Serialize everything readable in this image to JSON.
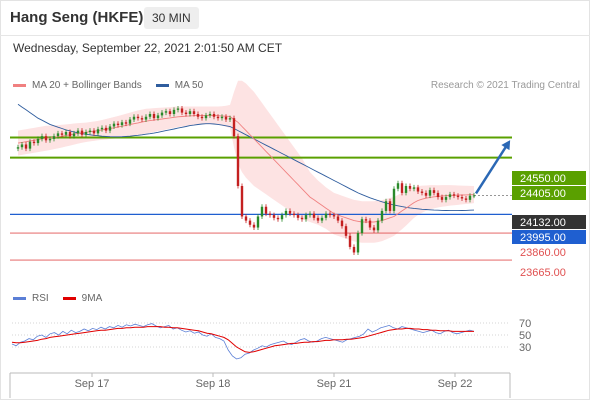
{
  "header": {
    "title": "Hang Seng (HKFE)",
    "interval": "30 MIN",
    "datetime": "Wednesday, September 22, 2021 2:01:50 AM CET"
  },
  "legend": {
    "main": [
      {
        "label": "MA 20 + Bollinger Bands",
        "color": "#f08080"
      },
      {
        "label": "MA 50",
        "color": "#2f5d9e"
      }
    ],
    "rsi": [
      {
        "label": "RSI",
        "color": "#5b7fd6"
      },
      {
        "label": "9MA",
        "color": "#e00000"
      }
    ]
  },
  "credit": "Research © 2021 Trading Central",
  "colors": {
    "up": "#2a8a2a",
    "down": "#c42020",
    "resistance": "#5aa000",
    "support_blue": "#1f5fd0",
    "support_red": "#e05050",
    "band_fill": "#fde3e3",
    "arrow": "#2b68b5"
  },
  "chart_data": [
    {
      "type": "candlestick",
      "x_ticks": [
        "Sep 17",
        "Sep 18",
        "Sep 21",
        "Sep 22"
      ],
      "y_range": [
        23550,
        24850
      ],
      "levels": [
        {
          "value": 24550,
          "label": "24550.00",
          "kind": "resistance"
        },
        {
          "value": 24405,
          "label": "24405.00",
          "kind": "resistance"
        },
        {
          "value": 24132,
          "label": "24132.00",
          "kind": "last"
        },
        {
          "value": 23995,
          "label": "23995.00",
          "kind": "support_blue"
        },
        {
          "value": 23860,
          "label": "23860.00",
          "kind": "support_red"
        },
        {
          "value": 23665,
          "label": "23665.00",
          "kind": "support_red"
        }
      ],
      "close": [
        24480,
        24500,
        24470,
        24520,
        24510,
        24540,
        24560,
        24530,
        24540,
        24560,
        24580,
        24570,
        24590,
        24560,
        24580,
        24600,
        24570,
        24590,
        24600,
        24580,
        24610,
        24620,
        24600,
        24630,
        24650,
        24640,
        24660,
        24650,
        24680,
        24700,
        24690,
        24680,
        24700,
        24720,
        24690,
        24710,
        24730,
        24740,
        24720,
        24750,
        24760,
        24730,
        24720,
        24740,
        24720,
        24700,
        24690,
        24710,
        24720,
        24700,
        24690,
        24700,
        24680,
        24690,
        24560,
        24200,
        23980,
        23950,
        23920,
        23900,
        23980,
        24050,
        24000,
        23990,
        23970,
        23960,
        23990,
        24020,
        24000,
        23990,
        23970,
        23960,
        23990,
        24000,
        23970,
        23950,
        23970,
        24000,
        23990,
        23980,
        23950,
        23910,
        23840,
        23760,
        23720,
        23860,
        23960,
        23950,
        23900,
        23880,
        23950,
        24020,
        24090,
        24020,
        24180,
        24220,
        24150,
        24200,
        24180,
        24190,
        24160,
        24150,
        24130,
        24170,
        24150,
        24120,
        24100,
        24120,
        24140,
        24130,
        24120,
        24110,
        24100,
        24130,
        24132
      ],
      "ma20": [
        24510,
        24515,
        24520,
        24525,
        24530,
        24535,
        24540,
        24545,
        24548,
        24552,
        24556,
        24560,
        24565,
        24570,
        24575,
        24580,
        24584,
        24588,
        24592,
        24596,
        24600,
        24605,
        24610,
        24615,
        24620,
        24626,
        24632,
        24638,
        24644,
        24650,
        24656,
        24662,
        24668,
        24672,
        24676,
        24680,
        24684,
        24688,
        24692,
        24696,
        24700,
        24702,
        24704,
        24706,
        24708,
        24710,
        24710,
        24710,
        24710,
        24710,
        24708,
        24706,
        24704,
        24702,
        24680,
        24660,
        24630,
        24600,
        24570,
        24540,
        24510,
        24480,
        24450,
        24420,
        24390,
        24360,
        24330,
        24300,
        24270,
        24240,
        24210,
        24180,
        24150,
        24120,
        24100,
        24080,
        24060,
        24040,
        24020,
        24000,
        23990,
        23980,
        23970,
        23960,
        23950,
        23945,
        23940,
        23940,
        23940,
        23940,
        23945,
        23950,
        23960,
        23970,
        23980,
        24000,
        24020,
        24040,
        24060,
        24080,
        24095,
        24105,
        24112,
        24118,
        24122,
        24125,
        24128,
        24130,
        24132,
        24133,
        24134,
        24135,
        24136,
        24137,
        24138
      ],
      "ma50": [
        24790,
        24770,
        24750,
        24730,
        24710,
        24690,
        24675,
        24660,
        24645,
        24635,
        24625,
        24615,
        24605,
        24598,
        24590,
        24584,
        24578,
        24574,
        24570,
        24566,
        24563,
        24560,
        24558,
        24556,
        24555,
        24555,
        24556,
        24558,
        24560,
        24563,
        24566,
        24570,
        24574,
        24578,
        24582,
        24588,
        24594,
        24600,
        24606,
        24612,
        24618,
        24624,
        24630,
        24636,
        24640,
        24644,
        24648,
        24650,
        24650,
        24648,
        24645,
        24640,
        24635,
        24630,
        24615,
        24600,
        24585,
        24570,
        24555,
        24540,
        24525,
        24510,
        24495,
        24480,
        24465,
        24450,
        24435,
        24420,
        24405,
        24390,
        24375,
        24360,
        24345,
        24330,
        24315,
        24300,
        24285,
        24270,
        24255,
        24240,
        24225,
        24210,
        24195,
        24180,
        24165,
        24150,
        24138,
        24126,
        24115,
        24105,
        24095,
        24086,
        24078,
        24070,
        24063,
        24057,
        24051,
        24046,
        24042,
        24038,
        24035,
        24032,
        24030,
        24028,
        24026,
        24025,
        24024,
        24023,
        24022,
        24022,
        24022,
        24023,
        24024,
        24025,
        24026
      ],
      "bb_width": [
        90,
        90,
        90,
        90,
        90,
        90,
        90,
        90,
        88,
        86,
        84,
        82,
        80,
        78,
        76,
        74,
        72,
        70,
        70,
        70,
        70,
        72,
        74,
        76,
        78,
        80,
        82,
        84,
        86,
        88,
        90,
        90,
        90,
        88,
        86,
        84,
        82,
        80,
        78,
        76,
        74,
        72,
        70,
        68,
        66,
        64,
        64,
        64,
        64,
        64,
        66,
        70,
        76,
        84,
        200,
        300,
        330,
        340,
        340,
        340,
        330,
        320,
        310,
        300,
        290,
        280,
        270,
        260,
        250,
        240,
        230,
        220,
        200,
        180,
        170,
        160,
        155,
        150,
        150,
        150,
        150,
        150,
        150,
        150,
        150,
        150,
        150,
        150,
        150,
        150,
        150,
        148,
        146,
        144,
        140,
        136,
        132,
        126,
        118,
        110,
        104,
        98,
        92,
        88,
        84,
        80,
        78,
        76,
        74,
        72,
        70,
        68,
        66,
        64,
        62
      ]
    },
    {
      "type": "line",
      "title": "RSI",
      "y_ticks": [
        70,
        50,
        30
      ],
      "ylim": [
        0,
        100
      ],
      "series": [
        {
          "name": "RSI",
          "values": [
            35,
            32,
            38,
            40,
            44,
            42,
            48,
            50,
            46,
            52,
            54,
            50,
            56,
            52,
            58,
            54,
            56,
            60,
            57,
            61,
            59,
            63,
            60,
            64,
            62,
            66,
            63,
            67,
            65,
            68,
            66,
            64,
            67,
            69,
            65,
            62,
            64,
            66,
            60,
            62,
            58,
            55,
            57,
            53,
            55,
            50,
            48,
            52,
            46,
            44,
            40,
            25,
            15,
            10,
            12,
            18,
            20,
            25,
            28,
            32,
            30,
            34,
            36,
            38,
            40,
            36,
            34,
            38,
            42,
            44,
            40,
            38,
            40,
            44,
            46,
            44,
            42,
            40,
            38,
            42,
            44,
            46,
            48,
            52,
            60,
            55,
            58,
            62,
            64,
            66,
            62,
            60,
            64,
            62,
            60,
            58,
            56,
            54,
            56,
            58,
            54,
            52,
            56,
            58,
            54,
            52,
            54,
            56,
            58,
            56
          ]
        },
        {
          "name": "9MA",
          "values": [
            38,
            37,
            37,
            38,
            39,
            40,
            41,
            43,
            44,
            46,
            47,
            48,
            49,
            50,
            51,
            52,
            53,
            54,
            55,
            56,
            57,
            58,
            58,
            59,
            60,
            61,
            61,
            62,
            62,
            63,
            63,
            63,
            64,
            64,
            64,
            64,
            63,
            63,
            62,
            62,
            61,
            60,
            59,
            58,
            57,
            55,
            53,
            52,
            50,
            48,
            46,
            42,
            36,
            30,
            26,
            22,
            21,
            22,
            24,
            26,
            28,
            30,
            32,
            33,
            34,
            35,
            36,
            36,
            37,
            38,
            38,
            39,
            39,
            40,
            41,
            41,
            42,
            42,
            42,
            43,
            43,
            44,
            45,
            46,
            48,
            50,
            52,
            54,
            56,
            58,
            59,
            60,
            60,
            61,
            61,
            60,
            60,
            59,
            59,
            58,
            58,
            57,
            57,
            57,
            56,
            56,
            56,
            56,
            56,
            56
          ]
        }
      ]
    }
  ]
}
